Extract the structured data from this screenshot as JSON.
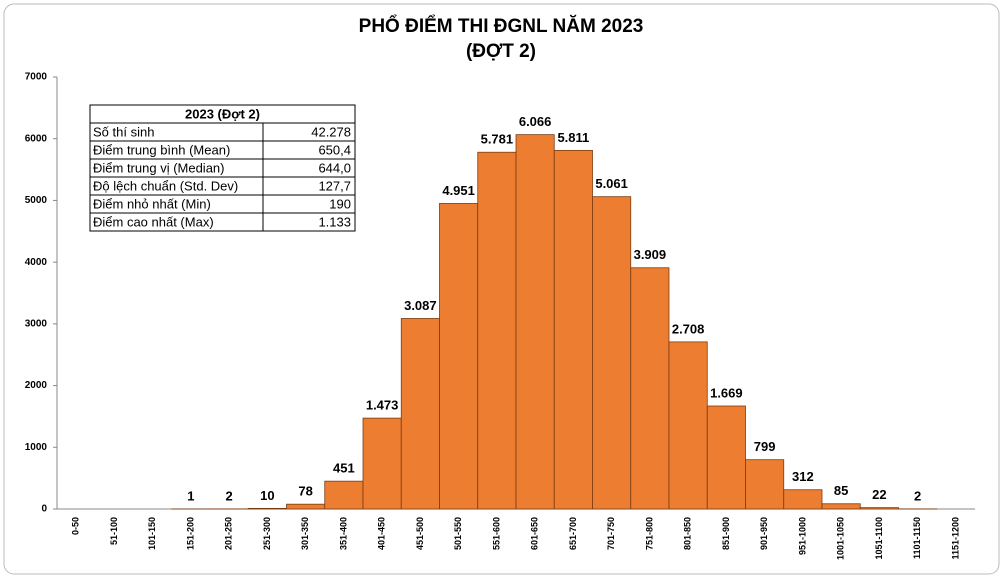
{
  "chart_data": {
    "type": "bar",
    "title": "PHỔ ĐIỂM THI ĐGNL NĂM 2023",
    "subtitle": "(ĐỢT 2)",
    "categories": [
      "0-50",
      "51-100",
      "101-150",
      "151-200",
      "201-250",
      "251-300",
      "301-350",
      "351-400",
      "401-450",
      "451-500",
      "501-550",
      "551-600",
      "601-650",
      "651-700",
      "701-750",
      "751-800",
      "801-850",
      "851-900",
      "901-950",
      "951-1000",
      "1001-1050",
      "1051-1100",
      "1101-1150",
      "1151-1200"
    ],
    "values": [
      0,
      0,
      0,
      1,
      2,
      10,
      78,
      451,
      1473,
      3087,
      4951,
      5781,
      6066,
      5811,
      5061,
      3909,
      2708,
      1669,
      799,
      312,
      85,
      22,
      2,
      0
    ],
    "value_labels": [
      null,
      null,
      null,
      "1",
      "2",
      "10",
      "78",
      "451",
      "1.473",
      "3.087",
      "4.951",
      "5.781",
      "6.066",
      "5.811",
      "5.061",
      "3.909",
      "2.708",
      "1.669",
      "799",
      "312",
      "85",
      "22",
      "2",
      null
    ],
    "color": "#ed7d31",
    "ylim": [
      0,
      7000
    ],
    "yticks": [
      0,
      1000,
      2000,
      3000,
      4000,
      5000,
      6000,
      7000
    ],
    "grid": false,
    "stats_table": {
      "title": "2023 (Đợt 2)",
      "rows": [
        [
          "Số thí sinh",
          "42.278"
        ],
        [
          "Điểm trung bình (Mean)",
          "650,4"
        ],
        [
          "Điểm trung vị (Median)",
          "644,0"
        ],
        [
          "Độ lệch chuẩn (Std. Dev)",
          "127,7"
        ],
        [
          "Điểm nhỏ nhất (Min)",
          "190"
        ],
        [
          "Điểm cao nhất (Max)",
          "1.133"
        ]
      ]
    }
  }
}
